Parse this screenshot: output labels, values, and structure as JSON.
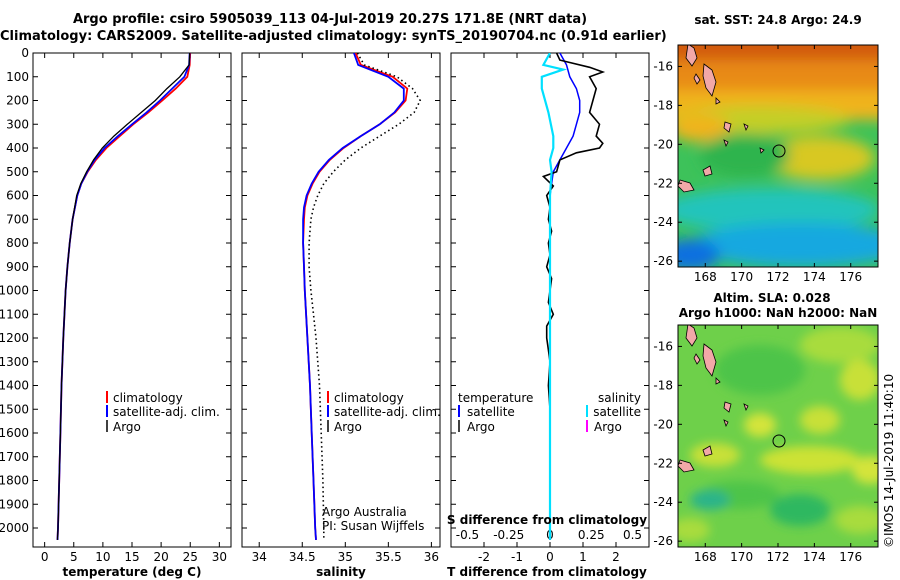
{
  "title_line1": "Argo profile: csiro 5905039_113 04-Jul-2019 20.27S 171.8E (NRT data)",
  "title_line2": "Climatology: CARS2009. Satellite-adjusted climatology: synTS_20190704.nc (0.91d earlier)",
  "map_top_title": "sat. SST: 24.8 Argo: 24.9",
  "map_bottom_title1": "Altim. SLA: 0.028",
  "map_bottom_title2": "Argo h1000: NaN h2000: NaN",
  "vertical_stamp": "©IMOS 14-Jul-2019 11:40:10",
  "credit_line1": "Argo Australia",
  "credit_line2": "PI: Susan Wijffels",
  "legend": {
    "climatology": "climatology",
    "satellite": "satellite-adj. clim.",
    "argo": "Argo",
    "temperature": "temperature",
    "salinity": "salinity",
    "satellite_short": "satellite"
  },
  "colors": {
    "climatology": "#ff0000",
    "satellite": "#0000ff",
    "argo": "#000000",
    "sal_satellite": "#00e0ff",
    "sal_argo": "#ff00ff"
  },
  "chart_data": [
    {
      "type": "line",
      "xlabel": "temperature (deg C)",
      "ylabel": "",
      "xlim": [
        -2,
        32
      ],
      "ylim": [
        2080,
        0
      ],
      "xticks": [
        0,
        5,
        10,
        15,
        20,
        25,
        30
      ],
      "yticks": [
        0,
        100,
        200,
        300,
        400,
        500,
        600,
        700,
        800,
        900,
        1000,
        1100,
        1200,
        1300,
        1400,
        1500,
        1600,
        1700,
        1800,
        1900,
        2000
      ],
      "series": [
        {
          "name": "climatology",
          "style": "solid",
          "depth": [
            0,
            50,
            100,
            150,
            200,
            250,
            300,
            350,
            400,
            450,
            500,
            550,
            600,
            700,
            800,
            900,
            1000,
            1200,
            1400,
            1600,
            1800,
            2000,
            2050
          ],
          "values": [
            25.0,
            24.9,
            24.5,
            22.5,
            20.2,
            17.8,
            15.2,
            12.9,
            10.6,
            8.8,
            7.4,
            6.3,
            5.6,
            4.8,
            4.3,
            3.9,
            3.6,
            3.2,
            2.9,
            2.7,
            2.5,
            2.3,
            2.2
          ]
        },
        {
          "name": "satellite-adj. clim.",
          "style": "solid",
          "depth": [
            0,
            50,
            100,
            150,
            200,
            250,
            300,
            350,
            400,
            450,
            500,
            550,
            600,
            700,
            800,
            900,
            1000,
            1200,
            1400,
            1600,
            1800,
            2000,
            2050
          ],
          "values": [
            24.9,
            24.8,
            24.0,
            21.9,
            19.8,
            17.5,
            15.0,
            12.6,
            10.3,
            8.6,
            7.3,
            6.3,
            5.6,
            4.8,
            4.3,
            3.9,
            3.6,
            3.2,
            2.9,
            2.7,
            2.5,
            2.3,
            2.2
          ]
        },
        {
          "name": "Argo",
          "style": "solid",
          "depth": [
            0,
            50,
            100,
            150,
            200,
            250,
            300,
            350,
            400,
            450,
            500,
            550,
            600,
            700,
            800,
            900,
            1000,
            1200,
            1400,
            1600,
            1800,
            2000,
            2050
          ],
          "values": [
            24.9,
            24.8,
            23.2,
            21.0,
            19.0,
            16.6,
            14.2,
            11.9,
            9.9,
            8.4,
            7.2,
            6.2,
            5.5,
            4.8,
            4.3,
            3.9,
            3.6,
            3.2,
            2.9,
            2.7,
            2.5,
            2.3,
            2.2
          ]
        }
      ]
    },
    {
      "type": "line",
      "xlabel": "salinity",
      "xlim": [
        33.8,
        36.1
      ],
      "ylim": [
        2080,
        0
      ],
      "xticks": [
        34,
        34.5,
        35,
        35.5,
        36
      ],
      "series": [
        {
          "name": "climatology",
          "style": "solid",
          "depth": [
            0,
            50,
            100,
            150,
            200,
            250,
            300,
            350,
            400,
            450,
            500,
            550,
            600,
            650,
            700,
            800,
            900,
            1000,
            1200,
            1400,
            1600,
            1800,
            2000,
            2050
          ],
          "values": [
            35.12,
            35.18,
            35.55,
            35.72,
            35.7,
            35.58,
            35.4,
            35.18,
            34.98,
            34.82,
            34.7,
            34.62,
            34.56,
            34.53,
            34.52,
            34.51,
            34.52,
            34.53,
            34.56,
            34.59,
            34.61,
            34.63,
            34.65,
            34.66
          ]
        },
        {
          "name": "satellite-adj. clim.",
          "style": "solid",
          "depth": [
            0,
            50,
            100,
            150,
            200,
            250,
            300,
            350,
            400,
            450,
            500,
            550,
            600,
            650,
            700,
            800,
            900,
            1000,
            1200,
            1400,
            1600,
            1800,
            2000,
            2050
          ],
          "values": [
            35.1,
            35.15,
            35.5,
            35.68,
            35.68,
            35.57,
            35.4,
            35.18,
            34.97,
            34.81,
            34.69,
            34.61,
            34.55,
            34.52,
            34.51,
            34.51,
            34.52,
            34.53,
            34.56,
            34.59,
            34.61,
            34.63,
            34.65,
            34.66
          ]
        },
        {
          "name": "Argo",
          "style": "dotted",
          "depth": [
            0,
            50,
            100,
            150,
            200,
            250,
            300,
            350,
            400,
            450,
            500,
            550,
            600,
            650,
            700,
            800,
            900,
            1000,
            1100,
            1200,
            1400,
            1600,
            1800,
            2000,
            2050
          ],
          "values": [
            35.14,
            35.22,
            35.6,
            35.78,
            35.87,
            35.8,
            35.62,
            35.4,
            35.18,
            35.0,
            34.86,
            34.75,
            34.68,
            34.63,
            34.6,
            34.58,
            34.58,
            34.6,
            34.63,
            34.66,
            34.7,
            34.72,
            34.74,
            34.75,
            34.75
          ]
        }
      ]
    },
    {
      "type": "line",
      "xlabel": "T difference from climatology",
      "xlabel2": "S difference from climatology",
      "xlim": [
        -3,
        3
      ],
      "ylim": [
        2080,
        0
      ],
      "xticks": [
        -2,
        -1,
        0,
        1,
        2
      ],
      "xticks2": [
        -0.5,
        -0.25,
        0,
        0.25,
        0.5
      ],
      "xticks2_labels": [
        "-0.5",
        "-0.25",
        "0",
        "0.25",
        "0.5"
      ],
      "series": [
        {
          "name": "T satellite",
          "style": "solid",
          "depth": [
            0,
            50,
            100,
            150,
            200,
            250,
            300,
            350,
            400,
            450,
            500,
            550,
            600,
            700,
            800,
            1000,
            1200,
            1400,
            1600,
            1800,
            2000,
            2050
          ],
          "values": [
            0.3,
            0.5,
            0.6,
            0.8,
            0.9,
            0.9,
            0.8,
            0.7,
            0.5,
            0.3,
            0.1,
            0.05,
            0.0,
            0.0,
            0.0,
            0.0,
            0.0,
            0.0,
            0.0,
            0.0,
            0.0,
            0.0
          ]
        },
        {
          "name": "T Argo",
          "style": "solid",
          "depth": [
            0,
            30,
            60,
            80,
            100,
            150,
            200,
            250,
            300,
            350,
            380,
            400,
            420,
            450,
            500,
            520,
            560,
            600,
            650,
            700,
            750,
            800,
            850,
            900,
            950,
            1000,
            1050,
            1100,
            1150,
            1200,
            1250,
            1300,
            1400,
            1500,
            1600,
            1700,
            1800,
            1900,
            2000,
            2050
          ],
          "values": [
            0.2,
            0.3,
            1.2,
            1.6,
            1.2,
            1.4,
            1.3,
            1.2,
            1.5,
            1.4,
            1.6,
            1.5,
            0.8,
            0.3,
            0.2,
            -0.2,
            0.1,
            -0.1,
            0.0,
            -0.05,
            0.05,
            -0.05,
            0.0,
            -0.1,
            0.05,
            0.0,
            -0.05,
            0.1,
            -0.1,
            -0.1,
            -0.05,
            0.0,
            -0.05,
            0.0,
            0.0,
            0.0,
            0.0,
            0.0,
            0.0,
            0.0
          ]
        },
        {
          "name": "S satellite",
          "style": "solid",
          "depth": [
            0,
            50,
            70,
            100,
            150,
            250,
            350,
            400,
            450,
            500,
            600,
            700,
            800,
            1000,
            1200,
            1400,
            1600,
            1800,
            2000,
            2050
          ],
          "values": [
            0.0,
            -0.04,
            0.08,
            -0.05,
            -0.05,
            -0.01,
            0.02,
            0.02,
            0.0,
            0.01,
            0.0,
            0.0,
            0.0,
            0.0,
            0.0,
            0.0,
            0.0,
            0.0,
            0.0,
            0.0
          ]
        }
      ]
    }
  ]
}
